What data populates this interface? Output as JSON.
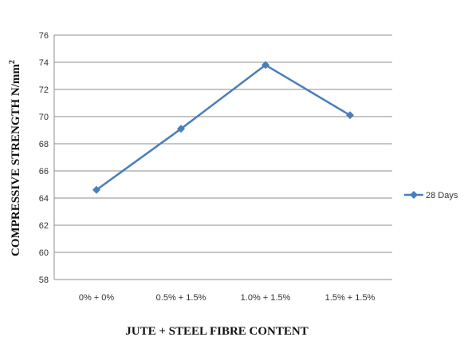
{
  "chart_data": {
    "type": "line",
    "title": "",
    "xlabel": "JUTE + STEEL FIBRE CONTENT",
    "ylabel_main": "COMPRESSIVE STRENGTH N/mm",
    "ylabel_sup": "2",
    "categories": [
      "0% + 0%",
      "0.5% + 1.5%",
      "1.0% + 1.5%",
      "1.5% + 1.5%"
    ],
    "series": [
      {
        "name": "28 Days",
        "values": [
          64.6,
          69.1,
          73.8,
          70.1
        ],
        "color": "#4a7ebb"
      }
    ],
    "ylim": [
      58,
      76
    ],
    "yticks": [
      58,
      60,
      62,
      64,
      66,
      68,
      70,
      72,
      74,
      76
    ],
    "grid": "horizontal",
    "legend_position": "right",
    "marker": "diamond"
  }
}
